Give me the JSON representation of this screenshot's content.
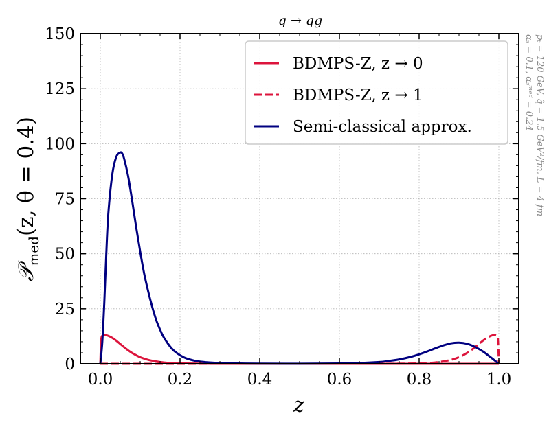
{
  "chart_data": {
    "type": "line",
    "title": "q → qg",
    "xlabel": "z",
    "ylabel": "𝒫_med(z, θ = 0.4)",
    "ylabel_main": "𝒫",
    "ylabel_sub": "med",
    "ylabel_args": "(z, θ = 0.4)",
    "xlim": [
      -0.05,
      1.05
    ],
    "ylim": [
      0,
      150
    ],
    "xticks": [
      0.0,
      0.2,
      0.4,
      0.6,
      0.8,
      1.0
    ],
    "xtick_labels": [
      "0.0",
      "0.2",
      "0.4",
      "0.6",
      "0.8",
      "1.0"
    ],
    "yticks": [
      0,
      25,
      50,
      75,
      100,
      125,
      150
    ],
    "ytick_labels": [
      "0",
      "25",
      "50",
      "75",
      "100",
      "125",
      "150"
    ],
    "grid": true,
    "legend_position": "top-right",
    "side_note_lines": [
      "pₜ = 120 GeV, q̂ = 1.5 GeV²/fm, L = 4 fm",
      "αₛ = 0.1, αₛᵐᵉᵈ = 0.24"
    ],
    "series": [
      {
        "name": "BDMPS-Z, z → 0",
        "color": "#dc143c",
        "dash": "solid",
        "x": [
          0.0,
          0.002,
          0.005,
          0.01,
          0.015,
          0.02,
          0.03,
          0.04,
          0.05,
          0.06,
          0.07,
          0.08,
          0.09,
          0.1,
          0.12,
          0.14,
          0.16,
          0.18,
          0.2,
          0.25,
          0.3,
          0.4,
          0.5,
          0.6,
          0.7,
          0.8,
          0.9,
          1.0
        ],
        "y": [
          0,
          10.5,
          12.8,
          13.1,
          13.0,
          12.7,
          11.8,
          10.5,
          9.0,
          7.5,
          6.1,
          4.9,
          3.9,
          3.0,
          1.8,
          1.1,
          0.6,
          0.35,
          0.2,
          0.06,
          0.02,
          0.005,
          0.0,
          0.0,
          0.0,
          0.0,
          0.0,
          0.0
        ]
      },
      {
        "name": "BDMPS-Z, z → 1",
        "color": "#dc143c",
        "dash": "dashed",
        "x": [
          0.0,
          0.1,
          0.2,
          0.3,
          0.4,
          0.5,
          0.6,
          0.7,
          0.75,
          0.8,
          0.82,
          0.84,
          0.86,
          0.88,
          0.9,
          0.92,
          0.93,
          0.94,
          0.95,
          0.96,
          0.97,
          0.98,
          0.985,
          0.99,
          0.995,
          0.998,
          1.0
        ],
        "y": [
          0,
          0,
          0,
          0,
          0,
          0.0,
          0.005,
          0.02,
          0.06,
          0.2,
          0.35,
          0.6,
          1.1,
          1.8,
          3.0,
          4.9,
          6.1,
          7.5,
          9.0,
          10.5,
          11.8,
          12.7,
          13.0,
          13.1,
          12.8,
          10.5,
          0
        ]
      },
      {
        "name": "Semi-classical approx.",
        "color": "#000080",
        "dash": "solid",
        "x": [
          0.0,
          0.005,
          0.01,
          0.015,
          0.02,
          0.03,
          0.04,
          0.05,
          0.055,
          0.06,
          0.07,
          0.08,
          0.09,
          0.1,
          0.11,
          0.12,
          0.13,
          0.14,
          0.15,
          0.16,
          0.18,
          0.2,
          0.22,
          0.25,
          0.3,
          0.35,
          0.4,
          0.5,
          0.6,
          0.65,
          0.7,
          0.72,
          0.75,
          0.78,
          0.8,
          0.82,
          0.84,
          0.86,
          0.88,
          0.9,
          0.92,
          0.94,
          0.96,
          0.98,
          1.0
        ],
        "y": [
          0,
          10,
          28,
          50,
          68,
          86,
          94,
          96,
          95.5,
          93,
          85,
          74,
          62,
          51,
          41,
          33,
          26,
          20,
          15.5,
          11.8,
          6.8,
          3.9,
          2.2,
          1.0,
          0.35,
          0.15,
          0.08,
          0.05,
          0.15,
          0.35,
          0.8,
          1.2,
          2.0,
          3.2,
          4.3,
          5.6,
          7.0,
          8.3,
          9.3,
          9.6,
          9.1,
          7.7,
          5.6,
          2.9,
          0
        ]
      }
    ]
  }
}
